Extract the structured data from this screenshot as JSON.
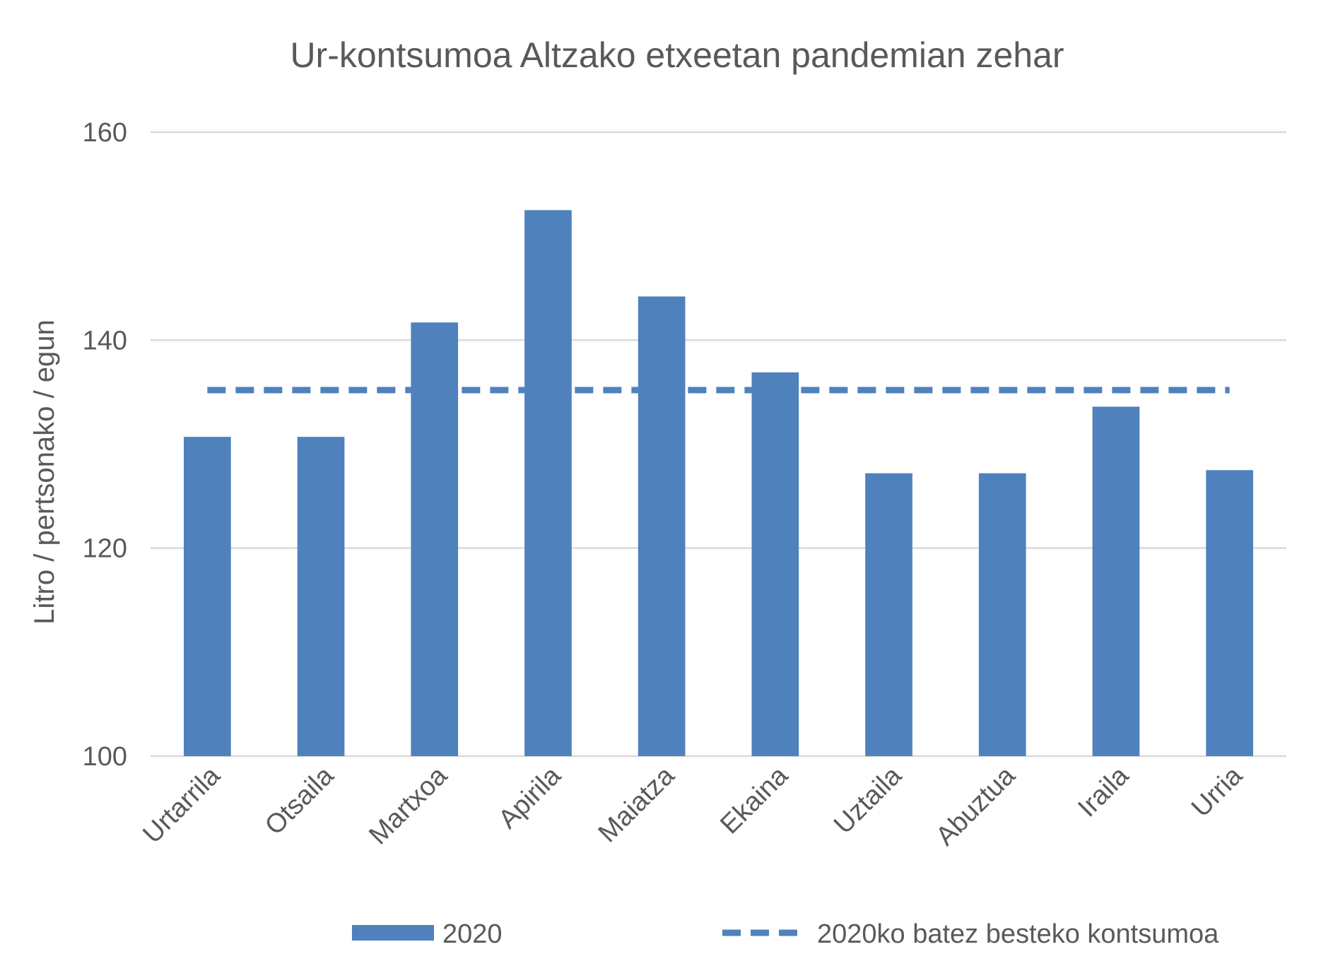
{
  "chart_data": {
    "type": "bar",
    "title": "Ur-kontsumoa Altzako etxeetan pandemian zehar",
    "xlabel": "",
    "ylabel": "Litro / pertsonako / egun",
    "ylim": [
      100,
      160
    ],
    "yticks": [
      100,
      120,
      140,
      160
    ],
    "grid": true,
    "legend_position": "bottom",
    "categories": [
      "Urtarrila",
      "Otsaila",
      "Martxoa",
      "Apirila",
      "Maiatza",
      "Ekaina",
      "Uztaila",
      "Abuztua",
      "Iraila",
      "Urria"
    ],
    "series": [
      {
        "name": "2020",
        "type": "bar",
        "color": "#4f81bd",
        "values": [
          130.7,
          130.7,
          141.7,
          152.5,
          144.2,
          136.9,
          127.2,
          127.2,
          133.6,
          127.5
        ]
      },
      {
        "name": "2020ko batez besteko kontsumoa",
        "type": "line",
        "style": "dashed",
        "color": "#4f81bd",
        "values": [
          135.2,
          135.2,
          135.2,
          135.2,
          135.2,
          135.2,
          135.2,
          135.2,
          135.2,
          135.2
        ]
      }
    ]
  }
}
